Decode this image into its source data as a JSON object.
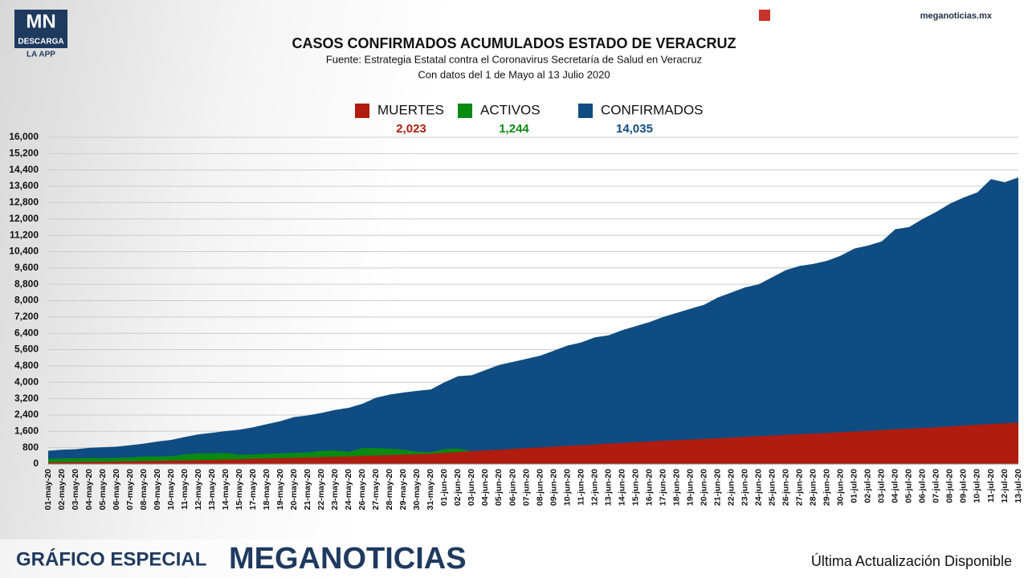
{
  "branding": {
    "logo": "MN",
    "logo_sub": "DESCARGA",
    "logo_app": "LA APP",
    "site": "meganoticias.mx",
    "footer_left": "GRÁFICO ESPECIAL",
    "footer_brand": "MEGANOTICIAS",
    "footer_right": "Última Actualización Disponible"
  },
  "chart_data": {
    "type": "area",
    "title": "CASOS CONFIRMADOS ACUMULADOS ESTADO DE VERACRUZ",
    "subtitle": "Fuente: Estrategia Estatal contra el Coronavirus Secretaría de Salud en Veracruz",
    "note": "Con datos del 1 de Mayo al 13 Julio 2020",
    "categories": [
      "01-may-20",
      "02-may-20",
      "03-may-20",
      "04-may-20",
      "05-may-20",
      "06-may-20",
      "07-may-20",
      "08-may-20",
      "09-may-20",
      "10-may-20",
      "11-may-20",
      "12-may-20",
      "13-may-20",
      "14-may-20",
      "15-may-20",
      "17-may-20",
      "18-may-20",
      "19-may-20",
      "20-may-20",
      "21-may-20",
      "22-may-20",
      "23-may-20",
      "24-may-20",
      "26-may-20",
      "27-may-20",
      "28-may-20",
      "29-may-20",
      "30-may-20",
      "31-may-20",
      "01-jun-20",
      "02-jun-20",
      "03-jun-20",
      "04-jun-20",
      "05-jun-20",
      "06-jun-20",
      "07-jun-20",
      "08-jun-20",
      "09-jun-20",
      "10-jun-20",
      "11-jun-20",
      "12-jun-20",
      "13-jun-20",
      "14-jun-20",
      "15-jun-20",
      "16-jun-20",
      "17-jun-20",
      "18-jun-20",
      "19-jun-20",
      "20-jun-20",
      "21-jun-20",
      "22-jun-20",
      "23-jun-20",
      "24-jun-20",
      "25-jun-20",
      "26-jun-20",
      "27-jun-20",
      "28-jun-20",
      "29-jun-20",
      "30-jun-20",
      "01-jul-20",
      "02-jul-20",
      "03-jul-20",
      "04-jul-20",
      "05-jul-20",
      "06-jul-20",
      "07-jul-20",
      "08-jul-20",
      "09-jul-20",
      "10-jul-20",
      "11-jul-20",
      "12-jul-20",
      "13-jul-20"
    ],
    "series": [
      {
        "name": "CONFIRMADOS",
        "color": "#0f4c81",
        "total": {
          "value": 14035,
          "label": "14,035"
        },
        "values": [
          650,
          700,
          720,
          790,
          820,
          850,
          920,
          1000,
          1100,
          1180,
          1320,
          1450,
          1530,
          1610,
          1680,
          1800,
          1950,
          2100,
          2300,
          2380,
          2500,
          2650,
          2750,
          2950,
          3250,
          3400,
          3500,
          3580,
          3650,
          4000,
          4300,
          4350,
          4600,
          4850,
          5000,
          5150,
          5300,
          5550,
          5800,
          5950,
          6200,
          6300,
          6550,
          6750,
          6950,
          7200,
          7400,
          7600,
          7800,
          8150,
          8400,
          8650,
          8800,
          9150,
          9500,
          9700,
          9800,
          9950,
          10200,
          10550,
          10700,
          10900,
          11500,
          11600,
          12000,
          12350,
          12750,
          13050,
          13300,
          13950,
          13800,
          14035
        ]
      },
      {
        "name": "ACTIVOS",
        "color": "#0a8a12",
        "total": {
          "value": 1244,
          "label": "1,244"
        },
        "values": [
          250,
          270,
          280,
          300,
          290,
          300,
          330,
          370,
          370,
          380,
          470,
          520,
          520,
          540,
          450,
          470,
          500,
          520,
          550,
          570,
          650,
          660,
          600,
          780,
          780,
          750,
          700,
          600,
          580,
          720,
          760,
          620,
          640,
          650,
          670,
          690,
          700,
          710,
          720,
          740,
          750,
          760,
          780,
          800,
          810,
          830,
          850,
          860,
          880,
          900,
          910,
          930,
          950,
          960,
          980,
          1000,
          1010,
          1030,
          1050,
          1070,
          1080,
          1100,
          1110,
          1120,
          1140,
          1150,
          1160,
          1180,
          1190,
          1210,
          1230,
          1244
        ]
      },
      {
        "name": "MUERTES",
        "color": "#b01c10",
        "total": {
          "value": 2023,
          "label": "2,023"
        },
        "values": [
          80,
          90,
          100,
          105,
          110,
          120,
          130,
          140,
          150,
          160,
          170,
          185,
          200,
          215,
          230,
          255,
          270,
          285,
          300,
          320,
          340,
          355,
          370,
          400,
          420,
          440,
          460,
          480,
          500,
          550,
          590,
          630,
          670,
          700,
          740,
          780,
          810,
          850,
          890,
          920,
          960,
          1000,
          1030,
          1070,
          1100,
          1140,
          1170,
          1200,
          1230,
          1260,
          1290,
          1330,
          1360,
          1390,
          1430,
          1460,
          1490,
          1520,
          1560,
          1590,
          1620,
          1660,
          1700,
          1730,
          1760,
          1800,
          1840,
          1880,
          1920,
          1960,
          1990,
          2023
        ]
      }
    ],
    "legend_order": [
      2,
      1,
      0
    ],
    "ylim": [
      0,
      16000
    ],
    "yticks": [
      0,
      800,
      {
        "value": 1600,
        "label": "1,600"
      },
      {
        "value": 2400,
        "label": "2,400"
      },
      {
        "value": 3200,
        "label": "3,200"
      },
      {
        "value": 4000,
        "label": "4,000"
      },
      {
        "value": 4800,
        "label": "4,800"
      },
      {
        "value": 5600,
        "label": "5,600"
      },
      {
        "value": 6400,
        "label": "6,400"
      },
      {
        "value": 7200,
        "label": "7,200"
      },
      {
        "value": 8000,
        "label": "8,000"
      },
      {
        "value": 8800,
        "label": "8,800"
      },
      {
        "value": 9600,
        "label": "9,600"
      },
      {
        "value": 10400,
        "label": "10,400"
      },
      {
        "value": 11200,
        "label": "11,200"
      },
      {
        "value": 12000,
        "label": "12,000"
      },
      {
        "value": 12800,
        "label": "12,800"
      },
      {
        "value": 13600,
        "label": "13,600"
      },
      {
        "value": 14400,
        "label": "14,400"
      },
      {
        "value": 15200,
        "label": "15,200"
      },
      {
        "value": 16000,
        "label": "16,000"
      }
    ],
    "grid": true
  }
}
